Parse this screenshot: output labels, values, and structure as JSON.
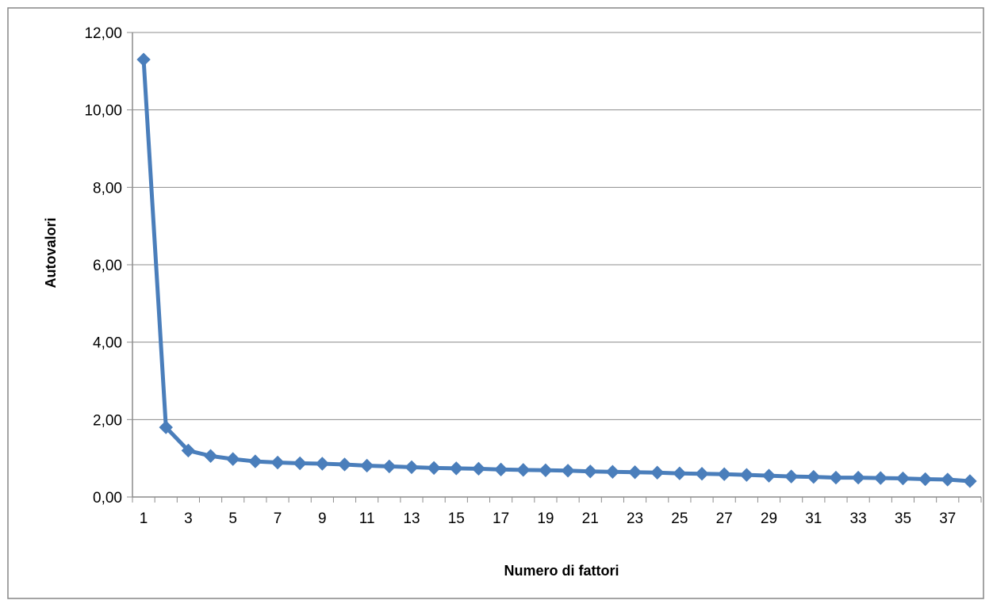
{
  "chart_data": {
    "type": "line",
    "title": "",
    "xlabel": "Numero di fattori",
    "ylabel": "Autovalori",
    "x": [
      1,
      2,
      3,
      4,
      5,
      6,
      7,
      8,
      9,
      10,
      11,
      12,
      13,
      14,
      15,
      16,
      17,
      18,
      19,
      20,
      21,
      22,
      23,
      24,
      25,
      26,
      27,
      28,
      29,
      30,
      31,
      32,
      33,
      34,
      35,
      36,
      37,
      38
    ],
    "x_tick_labels": [
      "1",
      "3",
      "5",
      "7",
      "9",
      "11",
      "13",
      "15",
      "17",
      "19",
      "21",
      "23",
      "25",
      "27",
      "29",
      "31",
      "33",
      "35",
      "37"
    ],
    "ylim": [
      0,
      12
    ],
    "y_tick_labels": [
      "0,00",
      "2,00",
      "4,00",
      "6,00",
      "8,00",
      "10,00",
      "12,00"
    ],
    "grid": "horizontal",
    "legend": "none",
    "series": [
      {
        "color": "#4a7ebb",
        "marker": "diamond",
        "values": [
          11.3,
          1.8,
          1.2,
          1.06,
          0.98,
          0.92,
          0.89,
          0.87,
          0.86,
          0.84,
          0.81,
          0.79,
          0.77,
          0.75,
          0.74,
          0.73,
          0.71,
          0.7,
          0.69,
          0.68,
          0.66,
          0.65,
          0.64,
          0.63,
          0.61,
          0.6,
          0.59,
          0.57,
          0.55,
          0.53,
          0.52,
          0.5,
          0.5,
          0.49,
          0.48,
          0.46,
          0.45,
          0.41
        ]
      }
    ]
  }
}
